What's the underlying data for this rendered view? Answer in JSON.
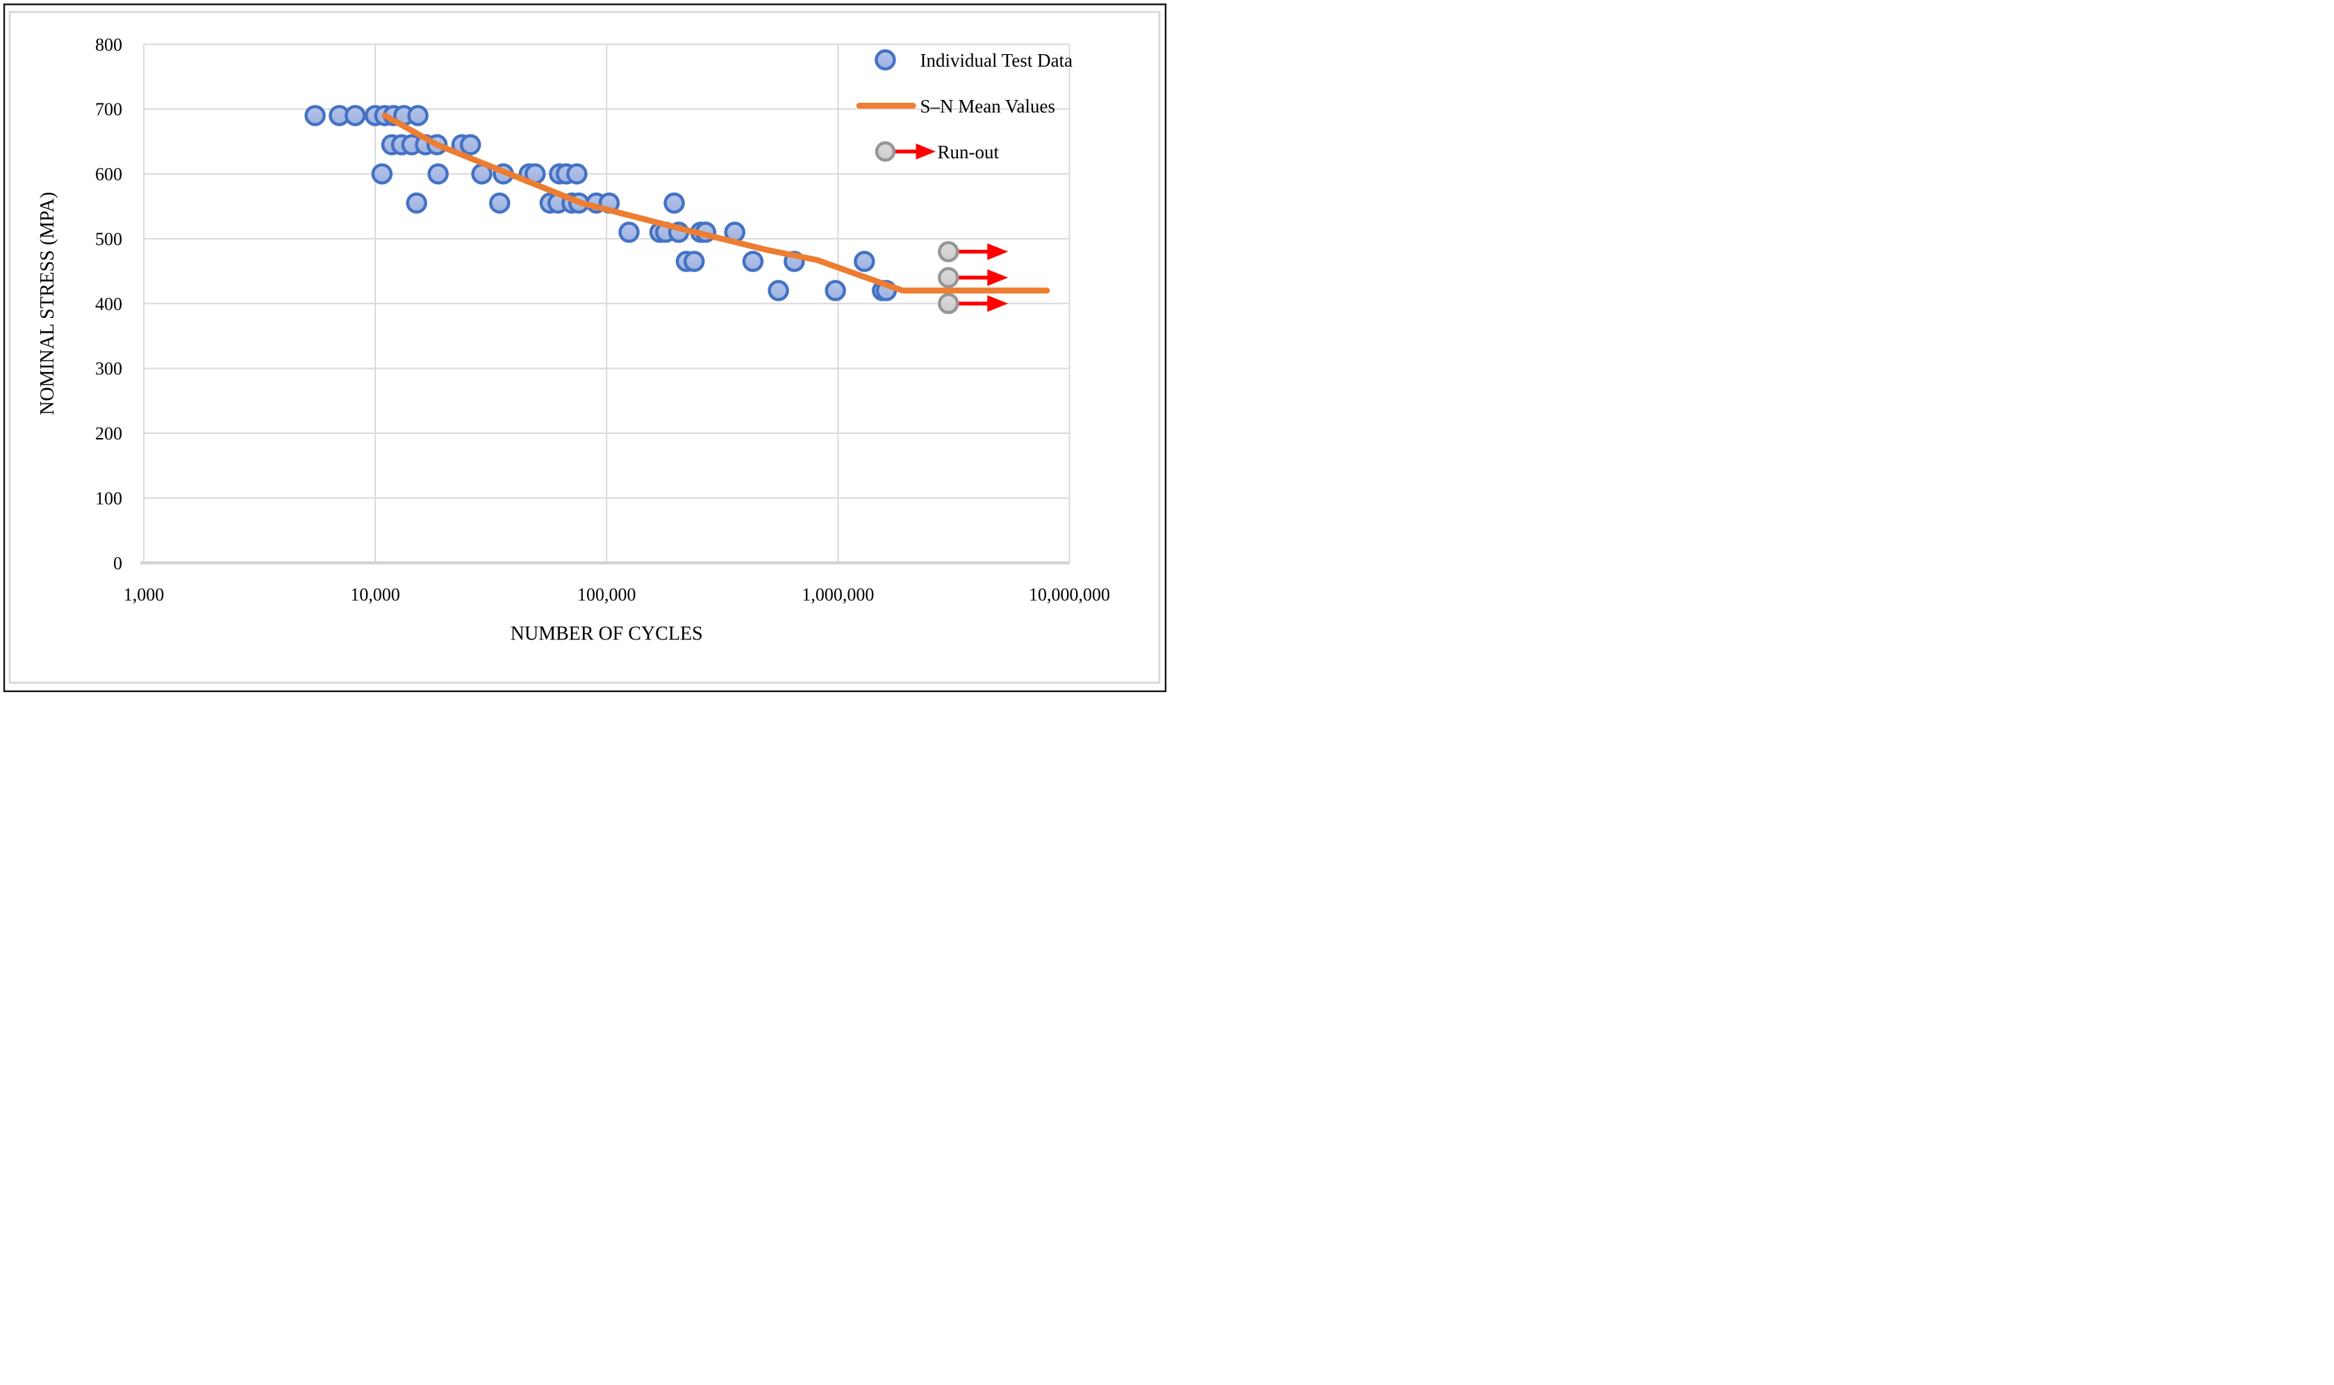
{
  "figure": {
    "background": "#ffffff",
    "outer_border_color": "#1a1a1a",
    "chart_frame_color": "#d9d9d9"
  },
  "colors": {
    "gridline": "#d9d9d9",
    "axis_line": "#d3d3d3",
    "text": "#000000",
    "test_data_fill": "#9db3e0",
    "test_data_fill_light": "#b6c4ea",
    "test_data_stroke": "#4472c4",
    "mean_line": "#ed7d31",
    "runout_fill": "#cccccc",
    "runout_fill_light": "#dcdcdc",
    "runout_stroke": "#969696",
    "runout_arrow": "#ff0000"
  },
  "legend": {
    "position": "top-right-inside",
    "items": [
      {
        "key": "individual-test-data",
        "label": "Individual Test Data",
        "marker": "blue-circle"
      },
      {
        "key": "sn-mean-values",
        "label": "S–N Mean Values",
        "marker": "orange-line"
      },
      {
        "key": "run-out",
        "label": "Run-out",
        "marker": "gray-circle-red-arrow"
      }
    ]
  },
  "chart_data": {
    "type": "scatter",
    "title": "",
    "xlabel": "NUMBER OF CYCLES",
    "ylabel": "NOMINAL STRESS (MPA)",
    "x_scale": "log",
    "xlim": [
      1000,
      10000000
    ],
    "ylim": [
      0,
      800
    ],
    "grid": true,
    "x_ticks": [
      {
        "value": 1000,
        "label": "1,000"
      },
      {
        "value": 10000,
        "label": "10,000"
      },
      {
        "value": 100000,
        "label": "100,000"
      },
      {
        "value": 1000000,
        "label": "1,000,000"
      },
      {
        "value": 10000000,
        "label": "10,000,000"
      }
    ],
    "y_ticks": [
      {
        "value": 0,
        "label": "0"
      },
      {
        "value": 100,
        "label": "100"
      },
      {
        "value": 200,
        "label": "200"
      },
      {
        "value": 300,
        "label": "300"
      },
      {
        "value": 400,
        "label": "400"
      },
      {
        "value": 500,
        "label": "500"
      },
      {
        "value": 600,
        "label": "600"
      },
      {
        "value": 700,
        "label": "700"
      },
      {
        "value": 800,
        "label": "800"
      }
    ],
    "series": [
      {
        "name": "Individual Test Data",
        "type": "scatter",
        "marker": "circle",
        "points": [
          [
            5500,
            690
          ],
          [
            7000,
            690
          ],
          [
            8200,
            690
          ],
          [
            10000,
            690
          ],
          [
            11000,
            690
          ],
          [
            12000,
            690
          ],
          [
            13300,
            690
          ],
          [
            15300,
            690
          ],
          [
            11800,
            645
          ],
          [
            13000,
            645
          ],
          [
            14400,
            645
          ],
          [
            16500,
            645
          ],
          [
            18500,
            645
          ],
          [
            23700,
            645
          ],
          [
            25800,
            645
          ],
          [
            10700,
            600
          ],
          [
            18700,
            600
          ],
          [
            28900,
            600
          ],
          [
            35800,
            600
          ],
          [
            46300,
            600
          ],
          [
            49100,
            600
          ],
          [
            62600,
            600
          ],
          [
            67000,
            600
          ],
          [
            74400,
            600
          ],
          [
            15100,
            555
          ],
          [
            34500,
            555
          ],
          [
            57000,
            555
          ],
          [
            61700,
            555
          ],
          [
            70900,
            555
          ],
          [
            75900,
            555
          ],
          [
            90300,
            555
          ],
          [
            102600,
            555
          ],
          [
            196000,
            555
          ],
          [
            125000,
            510
          ],
          [
            170000,
            510
          ],
          [
            180000,
            510
          ],
          [
            205000,
            510
          ],
          [
            255000,
            510
          ],
          [
            268000,
            510
          ],
          [
            358000,
            510
          ],
          [
            221000,
            465
          ],
          [
            239000,
            465
          ],
          [
            429000,
            465
          ],
          [
            647000,
            465
          ],
          [
            1300000,
            465
          ],
          [
            553000,
            420
          ],
          [
            975000,
            420
          ],
          [
            1556000,
            420
          ],
          [
            1618000,
            420
          ]
        ]
      },
      {
        "name": "S–N Mean Values",
        "type": "line",
        "points": [
          [
            11000,
            690
          ],
          [
            18500,
            645
          ],
          [
            38000,
            600
          ],
          [
            78000,
            555
          ],
          [
            235000,
            511
          ],
          [
            490000,
            483
          ],
          [
            815000,
            467
          ],
          [
            1900000,
            420
          ],
          [
            8000000,
            420
          ]
        ]
      },
      {
        "name": "Run-out",
        "type": "scatter-arrow",
        "marker": "circle-right-arrow",
        "points": [
          [
            3000000,
            480
          ],
          [
            3000000,
            440
          ],
          [
            3000000,
            400
          ]
        ]
      }
    ]
  }
}
